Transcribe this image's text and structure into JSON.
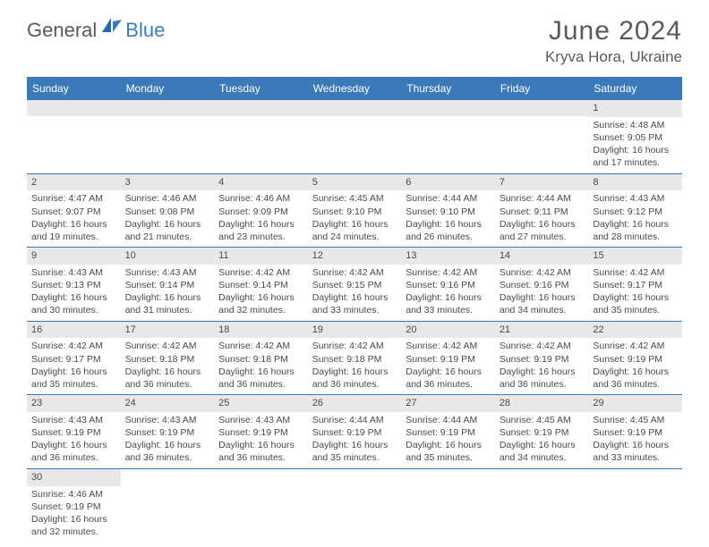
{
  "brand": {
    "general": "General",
    "blue": "Blue"
  },
  "title": {
    "month": "June 2024",
    "location": "Kryva Hora, Ukraine"
  },
  "colors": {
    "header_bg": "#3b7ab8",
    "daynum_bg": "#e8e8e8",
    "row_divider": "#3b7ab8",
    "text": "#4a4a4a",
    "title_text": "#5a5a5a"
  },
  "weekdays": [
    "Sunday",
    "Monday",
    "Tuesday",
    "Wednesday",
    "Thursday",
    "Friday",
    "Saturday"
  ],
  "weeks": [
    [
      null,
      null,
      null,
      null,
      null,
      null,
      {
        "n": "1",
        "sr": "Sunrise: 4:48 AM",
        "ss": "Sunset: 9:05 PM",
        "d1": "Daylight: 16 hours",
        "d2": "and 17 minutes."
      }
    ],
    [
      {
        "n": "2",
        "sr": "Sunrise: 4:47 AM",
        "ss": "Sunset: 9:07 PM",
        "d1": "Daylight: 16 hours",
        "d2": "and 19 minutes."
      },
      {
        "n": "3",
        "sr": "Sunrise: 4:46 AM",
        "ss": "Sunset: 9:08 PM",
        "d1": "Daylight: 16 hours",
        "d2": "and 21 minutes."
      },
      {
        "n": "4",
        "sr": "Sunrise: 4:46 AM",
        "ss": "Sunset: 9:09 PM",
        "d1": "Daylight: 16 hours",
        "d2": "and 23 minutes."
      },
      {
        "n": "5",
        "sr": "Sunrise: 4:45 AM",
        "ss": "Sunset: 9:10 PM",
        "d1": "Daylight: 16 hours",
        "d2": "and 24 minutes."
      },
      {
        "n": "6",
        "sr": "Sunrise: 4:44 AM",
        "ss": "Sunset: 9:10 PM",
        "d1": "Daylight: 16 hours",
        "d2": "and 26 minutes."
      },
      {
        "n": "7",
        "sr": "Sunrise: 4:44 AM",
        "ss": "Sunset: 9:11 PM",
        "d1": "Daylight: 16 hours",
        "d2": "and 27 minutes."
      },
      {
        "n": "8",
        "sr": "Sunrise: 4:43 AM",
        "ss": "Sunset: 9:12 PM",
        "d1": "Daylight: 16 hours",
        "d2": "and 28 minutes."
      }
    ],
    [
      {
        "n": "9",
        "sr": "Sunrise: 4:43 AM",
        "ss": "Sunset: 9:13 PM",
        "d1": "Daylight: 16 hours",
        "d2": "and 30 minutes."
      },
      {
        "n": "10",
        "sr": "Sunrise: 4:43 AM",
        "ss": "Sunset: 9:14 PM",
        "d1": "Daylight: 16 hours",
        "d2": "and 31 minutes."
      },
      {
        "n": "11",
        "sr": "Sunrise: 4:42 AM",
        "ss": "Sunset: 9:14 PM",
        "d1": "Daylight: 16 hours",
        "d2": "and 32 minutes."
      },
      {
        "n": "12",
        "sr": "Sunrise: 4:42 AM",
        "ss": "Sunset: 9:15 PM",
        "d1": "Daylight: 16 hours",
        "d2": "and 33 minutes."
      },
      {
        "n": "13",
        "sr": "Sunrise: 4:42 AM",
        "ss": "Sunset: 9:16 PM",
        "d1": "Daylight: 16 hours",
        "d2": "and 33 minutes."
      },
      {
        "n": "14",
        "sr": "Sunrise: 4:42 AM",
        "ss": "Sunset: 9:16 PM",
        "d1": "Daylight: 16 hours",
        "d2": "and 34 minutes."
      },
      {
        "n": "15",
        "sr": "Sunrise: 4:42 AM",
        "ss": "Sunset: 9:17 PM",
        "d1": "Daylight: 16 hours",
        "d2": "and 35 minutes."
      }
    ],
    [
      {
        "n": "16",
        "sr": "Sunrise: 4:42 AM",
        "ss": "Sunset: 9:17 PM",
        "d1": "Daylight: 16 hours",
        "d2": "and 35 minutes."
      },
      {
        "n": "17",
        "sr": "Sunrise: 4:42 AM",
        "ss": "Sunset: 9:18 PM",
        "d1": "Daylight: 16 hours",
        "d2": "and 36 minutes."
      },
      {
        "n": "18",
        "sr": "Sunrise: 4:42 AM",
        "ss": "Sunset: 9:18 PM",
        "d1": "Daylight: 16 hours",
        "d2": "and 36 minutes."
      },
      {
        "n": "19",
        "sr": "Sunrise: 4:42 AM",
        "ss": "Sunset: 9:18 PM",
        "d1": "Daylight: 16 hours",
        "d2": "and 36 minutes."
      },
      {
        "n": "20",
        "sr": "Sunrise: 4:42 AM",
        "ss": "Sunset: 9:19 PM",
        "d1": "Daylight: 16 hours",
        "d2": "and 36 minutes."
      },
      {
        "n": "21",
        "sr": "Sunrise: 4:42 AM",
        "ss": "Sunset: 9:19 PM",
        "d1": "Daylight: 16 hours",
        "d2": "and 36 minutes."
      },
      {
        "n": "22",
        "sr": "Sunrise: 4:42 AM",
        "ss": "Sunset: 9:19 PM",
        "d1": "Daylight: 16 hours",
        "d2": "and 36 minutes."
      }
    ],
    [
      {
        "n": "23",
        "sr": "Sunrise: 4:43 AM",
        "ss": "Sunset: 9:19 PM",
        "d1": "Daylight: 16 hours",
        "d2": "and 36 minutes."
      },
      {
        "n": "24",
        "sr": "Sunrise: 4:43 AM",
        "ss": "Sunset: 9:19 PM",
        "d1": "Daylight: 16 hours",
        "d2": "and 36 minutes."
      },
      {
        "n": "25",
        "sr": "Sunrise: 4:43 AM",
        "ss": "Sunset: 9:19 PM",
        "d1": "Daylight: 16 hours",
        "d2": "and 36 minutes."
      },
      {
        "n": "26",
        "sr": "Sunrise: 4:44 AM",
        "ss": "Sunset: 9:19 PM",
        "d1": "Daylight: 16 hours",
        "d2": "and 35 minutes."
      },
      {
        "n": "27",
        "sr": "Sunrise: 4:44 AM",
        "ss": "Sunset: 9:19 PM",
        "d1": "Daylight: 16 hours",
        "d2": "and 35 minutes."
      },
      {
        "n": "28",
        "sr": "Sunrise: 4:45 AM",
        "ss": "Sunset: 9:19 PM",
        "d1": "Daylight: 16 hours",
        "d2": "and 34 minutes."
      },
      {
        "n": "29",
        "sr": "Sunrise: 4:45 AM",
        "ss": "Sunset: 9:19 PM",
        "d1": "Daylight: 16 hours",
        "d2": "and 33 minutes."
      }
    ],
    [
      {
        "n": "30",
        "sr": "Sunrise: 4:46 AM",
        "ss": "Sunset: 9:19 PM",
        "d1": "Daylight: 16 hours",
        "d2": "and 32 minutes."
      },
      null,
      null,
      null,
      null,
      null,
      null
    ]
  ]
}
